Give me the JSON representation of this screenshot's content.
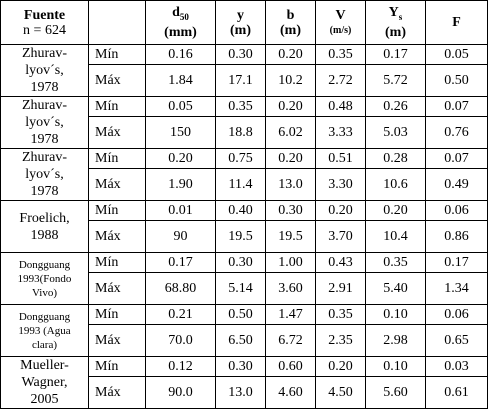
{
  "header": {
    "source": [
      "Fuente",
      "n = 624"
    ],
    "columns": [
      {
        "symbol": "d",
        "sub": "50",
        "unit": "(mm)"
      },
      {
        "symbol": "y",
        "unit": "(m)"
      },
      {
        "symbol": "b",
        "unit": "(m)"
      },
      {
        "symbol": "V",
        "unit": "(m/s)"
      },
      {
        "symbol": "Y",
        "sub": "s",
        "unit": "(m)"
      },
      {
        "symbol": "F"
      }
    ]
  },
  "groups": [
    {
      "source": [
        "Zhurav-",
        "lyov´s,",
        "1978"
      ],
      "rows": [
        {
          "label": "Mín",
          "values": [
            "0.16",
            "0.30",
            "0.20",
            "0.35",
            "0.17",
            "0.05"
          ]
        },
        {
          "label": "Máx",
          "values": [
            "1.84",
            "17.1",
            "10.2",
            "2.72",
            "5.72",
            "0.50"
          ]
        }
      ]
    },
    {
      "source": [
        "Zhurav-",
        "lyov´s,",
        "1978"
      ],
      "rows": [
        {
          "label": "Mín",
          "values": [
            "0.05",
            "0.35",
            "0.20",
            "0.48",
            "0.26",
            "0.07"
          ]
        },
        {
          "label": "Máx",
          "values": [
            "150",
            "18.8",
            "6.02",
            "3.33",
            "5.03",
            "0.76"
          ]
        }
      ]
    },
    {
      "source": [
        "Zhurav-",
        "lyov´s,",
        "1978"
      ],
      "rows": [
        {
          "label": "Mín",
          "values": [
            "0.20",
            "0.75",
            "0.20",
            "0.51",
            "0.28",
            "0.07"
          ]
        },
        {
          "label": "Máx",
          "values": [
            "1.90",
            "11.4",
            "13.0",
            "3.30",
            "10.6",
            "0.49"
          ]
        }
      ]
    },
    {
      "source": [
        "Froelich,",
        "1988"
      ],
      "rows": [
        {
          "label": "Mín",
          "values": [
            "0.01",
            "0.40",
            "0.30",
            "0.20",
            "0.20",
            "0.06"
          ]
        },
        {
          "label": "Máx",
          "values": [
            "90",
            "19.5",
            "19.5",
            "3.70",
            "10.4",
            "0.86"
          ]
        }
      ]
    },
    {
      "source": [
        "Dongguang",
        "1993(Fondo",
        "Vivo)"
      ],
      "small": true,
      "rows": [
        {
          "label": "Mín",
          "values": [
            "0.17",
            "0.30",
            "1.00",
            "0.43",
            "0.35",
            "0.17"
          ]
        },
        {
          "label": "Máx",
          "values": [
            "68.80",
            "5.14",
            "3.60",
            "2.91",
            "5.40",
            "1.34"
          ]
        }
      ]
    },
    {
      "source": [
        "Dongguang",
        "1993 (Agua",
        "clara)"
      ],
      "small": true,
      "rows": [
        {
          "label": "Mín",
          "values": [
            "0.21",
            "0.50",
            "1.47",
            "0.35",
            "0.10",
            "0.06"
          ]
        },
        {
          "label": "Máx",
          "values": [
            "70.0",
            "6.50",
            "6.72",
            "2.35",
            "2.98",
            "0.65"
          ]
        }
      ]
    },
    {
      "source": [
        "Mueller-",
        "Wagner,",
        "2005"
      ],
      "rows": [
        {
          "label": "Mín",
          "values": [
            "0.12",
            "0.30",
            "0.60",
            "0.20",
            "0.10",
            "0.03"
          ]
        },
        {
          "label": "Máx",
          "values": [
            "90.0",
            "13.0",
            "4.60",
            "4.50",
            "5.60",
            "0.61"
          ]
        }
      ]
    }
  ]
}
